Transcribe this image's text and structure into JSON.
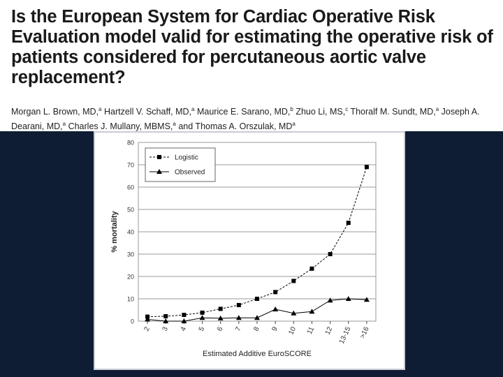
{
  "header": {
    "title": "Is the European System for Cardiac Operative Risk Evaluation model valid for estimating the operative risk of patients considered for percutaneous aortic valve replacement?",
    "authors": [
      {
        "name": "Morgan L. Brown, MD,",
        "sup": "a"
      },
      {
        "name": "Hartzell V. Schaff, MD,",
        "sup": "a"
      },
      {
        "name": "Maurice E. Sarano, MD,",
        "sup": "b"
      },
      {
        "name": "Zhuo Li, MS,",
        "sup": "c"
      },
      {
        "name": "Thoralf M. Sundt, MD,",
        "sup": "a"
      },
      {
        "name": "Joseph A. Dearani, MD,",
        "sup": "a"
      },
      {
        "name": "Charles J. Mullany, MBMS,",
        "sup": "a"
      },
      {
        "name": "and Thomas A. Orszulak, MD",
        "sup": "a"
      }
    ]
  },
  "chart_data": {
    "type": "line",
    "categories": [
      "2",
      "3",
      "4",
      "5",
      "6",
      "7",
      "8",
      "9",
      "10",
      "11",
      "12",
      "13-15",
      ">16"
    ],
    "series": [
      {
        "name": "Logistic",
        "marker": "square",
        "line_style": "dashed",
        "values": [
          2,
          2.2,
          2.8,
          3.8,
          5.5,
          7.2,
          10,
          13,
          18,
          23.5,
          30,
          44,
          69
        ]
      },
      {
        "name": "Observed",
        "marker": "triangle",
        "line_style": "solid",
        "values": [
          0.8,
          0,
          0,
          1.5,
          1.3,
          1.5,
          1.5,
          5.3,
          3.5,
          4.3,
          9.3,
          10,
          9.6
        ]
      }
    ],
    "xlabel": "Estimated Additive EuroSCORE",
    "ylabel": "% mortality",
    "ylim": [
      0,
      80
    ],
    "yticks": [
      0,
      10,
      20,
      30,
      40,
      50,
      60,
      70,
      80
    ],
    "grid": "horizontal",
    "legend_position": "top-left",
    "colors": {
      "series": "#000000",
      "grid": "#999999",
      "axis": "#444444"
    }
  }
}
